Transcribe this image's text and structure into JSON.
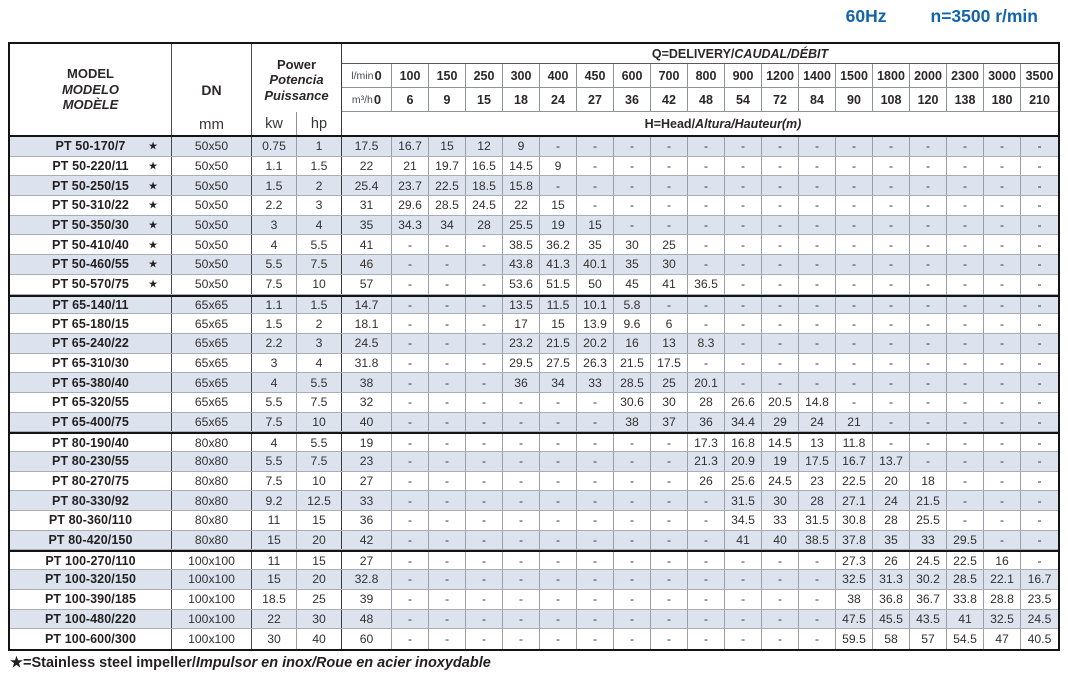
{
  "page": {
    "frequency": "60Hz",
    "speed": "n=3500 r/min",
    "accent_blue": "#1365ab",
    "row_shade": "#dce3ef"
  },
  "table": {
    "header": {
      "model_lines": [
        "MODEL",
        "MODELO",
        "MODÈLE"
      ],
      "dn_label": "DN",
      "dn_unit": "mm",
      "power_lines": [
        "Power",
        "Potencia",
        "Puissance"
      ],
      "kw_label": "kw",
      "hp_label": "hp",
      "delivery_bold": "Q=DELIVERY/",
      "delivery_italic": "CAUDAL/DÉBIT",
      "lmin_label": "l/min",
      "lmin_zero": "0",
      "m3h_label": "m³/h",
      "m3h_zero": "0",
      "lmin_values": [
        "100",
        "150",
        "250",
        "300",
        "400",
        "450",
        "600",
        "700",
        "800",
        "900",
        "1200",
        "1400",
        "1500",
        "1800",
        "2000",
        "2300",
        "3000",
        "3500"
      ],
      "m3h_values": [
        "6",
        "9",
        "15",
        "18",
        "24",
        "27",
        "36",
        "42",
        "48",
        "54",
        "72",
        "84",
        "90",
        "108",
        "120",
        "138",
        "180",
        "210"
      ],
      "head_bold": "H=Head/",
      "head_italic": "Altura/Hauteur(m)"
    },
    "rows": [
      {
        "model": "PT 50-170/7",
        "star": true,
        "dn": "50x50",
        "kw": "0.75",
        "hp": "1",
        "heads": [
          "17.5",
          "16.7",
          "15",
          "12",
          "9",
          "-",
          "-",
          "-",
          "-",
          "-",
          "-",
          "-",
          "-",
          "-",
          "-",
          "-",
          "-",
          "-",
          "-"
        ]
      },
      {
        "model": "PT 50-220/11",
        "star": true,
        "dn": "50x50",
        "kw": "1.1",
        "hp": "1.5",
        "heads": [
          "22",
          "21",
          "19.7",
          "16.5",
          "14.5",
          "9",
          "-",
          "-",
          "-",
          "-",
          "-",
          "-",
          "-",
          "-",
          "-",
          "-",
          "-",
          "-",
          "-"
        ]
      },
      {
        "model": "PT 50-250/15",
        "star": true,
        "dn": "50x50",
        "kw": "1.5",
        "hp": "2",
        "heads": [
          "25.4",
          "23.7",
          "22.5",
          "18.5",
          "15.8",
          "-",
          "-",
          "-",
          "-",
          "-",
          "-",
          "-",
          "-",
          "-",
          "-",
          "-",
          "-",
          "-",
          "-"
        ]
      },
      {
        "model": "PT 50-310/22",
        "star": true,
        "dn": "50x50",
        "kw": "2.2",
        "hp": "3",
        "heads": [
          "31",
          "29.6",
          "28.5",
          "24.5",
          "22",
          "15",
          "-",
          "-",
          "-",
          "-",
          "-",
          "-",
          "-",
          "-",
          "-",
          "-",
          "-",
          "-",
          "-"
        ]
      },
      {
        "model": "PT 50-350/30",
        "star": true,
        "dn": "50x50",
        "kw": "3",
        "hp": "4",
        "heads": [
          "35",
          "34.3",
          "34",
          "28",
          "25.5",
          "19",
          "15",
          "-",
          "-",
          "-",
          "-",
          "-",
          "-",
          "-",
          "-",
          "-",
          "-",
          "-",
          "-"
        ]
      },
      {
        "model": "PT 50-410/40",
        "star": true,
        "dn": "50x50",
        "kw": "4",
        "hp": "5.5",
        "heads": [
          "41",
          "-",
          "-",
          "-",
          "38.5",
          "36.2",
          "35",
          "30",
          "25",
          "-",
          "-",
          "-",
          "-",
          "-",
          "-",
          "-",
          "-",
          "-",
          "-"
        ]
      },
      {
        "model": "PT 50-460/55",
        "star": true,
        "dn": "50x50",
        "kw": "5.5",
        "hp": "7.5",
        "heads": [
          "46",
          "-",
          "-",
          "-",
          "43.8",
          "41.3",
          "40.1",
          "35",
          "30",
          "-",
          "-",
          "-",
          "-",
          "-",
          "-",
          "-",
          "-",
          "-",
          "-"
        ]
      },
      {
        "model": "PT 50-570/75",
        "star": true,
        "dn": "50x50",
        "kw": "7.5",
        "hp": "10",
        "heads": [
          "57",
          "-",
          "-",
          "-",
          "53.6",
          "51.5",
          "50",
          "45",
          "41",
          "36.5",
          "-",
          "-",
          "-",
          "-",
          "-",
          "-",
          "-",
          "-",
          "-"
        ]
      },
      {
        "model": "PT 65-140/11",
        "star": false,
        "dn": "65x65",
        "kw": "1.1",
        "hp": "1.5",
        "heads": [
          "14.7",
          "-",
          "-",
          "-",
          "13.5",
          "11.5",
          "10.1",
          "5.8",
          "-",
          "-",
          "-",
          "-",
          "-",
          "-",
          "-",
          "-",
          "-",
          "-",
          "-"
        ]
      },
      {
        "model": "PT 65-180/15",
        "star": false,
        "dn": "65x65",
        "kw": "1.5",
        "hp": "2",
        "heads": [
          "18.1",
          "-",
          "-",
          "-",
          "17",
          "15",
          "13.9",
          "9.6",
          "6",
          "-",
          "-",
          "-",
          "-",
          "-",
          "-",
          "-",
          "-",
          "-",
          "-"
        ]
      },
      {
        "model": "PT 65-240/22",
        "star": false,
        "dn": "65x65",
        "kw": "2.2",
        "hp": "3",
        "heads": [
          "24.5",
          "-",
          "-",
          "-",
          "23.2",
          "21.5",
          "20.2",
          "16",
          "13",
          "8.3",
          "-",
          "-",
          "-",
          "-",
          "-",
          "-",
          "-",
          "-",
          "-"
        ]
      },
      {
        "model": "PT 65-310/30",
        "star": false,
        "dn": "65x65",
        "kw": "3",
        "hp": "4",
        "heads": [
          "31.8",
          "-",
          "-",
          "-",
          "29.5",
          "27.5",
          "26.3",
          "21.5",
          "17.5",
          "-",
          "-",
          "-",
          "-",
          "-",
          "-",
          "-",
          "-",
          "-",
          "-"
        ]
      },
      {
        "model": "PT 65-380/40",
        "star": false,
        "dn": "65x65",
        "kw": "4",
        "hp": "5.5",
        "heads": [
          "38",
          "-",
          "-",
          "-",
          "36",
          "34",
          "33",
          "28.5",
          "25",
          "20.1",
          "-",
          "-",
          "-",
          "-",
          "-",
          "-",
          "-",
          "-",
          "-"
        ]
      },
      {
        "model": "PT 65-320/55",
        "star": false,
        "dn": "65x65",
        "kw": "5.5",
        "hp": "7.5",
        "heads": [
          "32",
          "-",
          "-",
          "-",
          "-",
          "-",
          "-",
          "30.6",
          "30",
          "28",
          "26.6",
          "20.5",
          "14.8",
          "-",
          "-",
          "-",
          "-",
          "-",
          "-"
        ]
      },
      {
        "model": "PT 65-400/75",
        "star": false,
        "dn": "65x65",
        "kw": "7.5",
        "hp": "10",
        "heads": [
          "40",
          "-",
          "-",
          "-",
          "-",
          "-",
          "-",
          "38",
          "37",
          "36",
          "34.4",
          "29",
          "24",
          "21",
          "-",
          "-",
          "-",
          "-",
          "-"
        ]
      },
      {
        "model": "PT 80-190/40",
        "star": false,
        "dn": "80x80",
        "kw": "4",
        "hp": "5.5",
        "heads": [
          "19",
          "-",
          "-",
          "-",
          "-",
          "-",
          "-",
          "-",
          "-",
          "17.3",
          "16.8",
          "14.5",
          "13",
          "11.8",
          "-",
          "-",
          "-",
          "-",
          "-"
        ]
      },
      {
        "model": "PT 80-230/55",
        "star": false,
        "dn": "80x80",
        "kw": "5.5",
        "hp": "7.5",
        "heads": [
          "23",
          "-",
          "-",
          "-",
          "-",
          "-",
          "-",
          "-",
          "-",
          "21.3",
          "20.9",
          "19",
          "17.5",
          "16.7",
          "13.7",
          "-",
          "-",
          "-",
          "-"
        ]
      },
      {
        "model": "PT 80-270/75",
        "star": false,
        "dn": "80x80",
        "kw": "7.5",
        "hp": "10",
        "heads": [
          "27",
          "-",
          "-",
          "-",
          "-",
          "-",
          "-",
          "-",
          "-",
          "26",
          "25.6",
          "24.5",
          "23",
          "22.5",
          "20",
          "18",
          "-",
          "-",
          "-"
        ]
      },
      {
        "model": "PT 80-330/92",
        "star": false,
        "dn": "80x80",
        "kw": "9.2",
        "hp": "12.5",
        "heads": [
          "33",
          "-",
          "-",
          "-",
          "-",
          "-",
          "-",
          "-",
          "-",
          "-",
          "31.5",
          "30",
          "28",
          "27.1",
          "24",
          "21.5",
          "-",
          "-",
          "-"
        ]
      },
      {
        "model": "PT 80-360/110",
        "star": false,
        "dn": "80x80",
        "kw": "11",
        "hp": "15",
        "heads": [
          "36",
          "-",
          "-",
          "-",
          "-",
          "-",
          "-",
          "-",
          "-",
          "-",
          "34.5",
          "33",
          "31.5",
          "30.8",
          "28",
          "25.5",
          "-",
          "-",
          "-"
        ]
      },
      {
        "model": "PT 80-420/150",
        "star": false,
        "dn": "80x80",
        "kw": "15",
        "hp": "20",
        "heads": [
          "42",
          "-",
          "-",
          "-",
          "-",
          "-",
          "-",
          "-",
          "-",
          "-",
          "41",
          "40",
          "38.5",
          "37.8",
          "35",
          "33",
          "29.5",
          "-",
          "-"
        ]
      },
      {
        "model": "PT 100-270/110",
        "star": false,
        "dn": "100x100",
        "kw": "11",
        "hp": "15",
        "heads": [
          "27",
          "-",
          "-",
          "-",
          "-",
          "-",
          "-",
          "-",
          "-",
          "-",
          "-",
          "-",
          "-",
          "27.3",
          "26",
          "24.5",
          "22.5",
          "16",
          "-"
        ]
      },
      {
        "model": "PT 100-320/150",
        "star": false,
        "dn": "100x100",
        "kw": "15",
        "hp": "20",
        "heads": [
          "32.8",
          "-",
          "-",
          "-",
          "-",
          "-",
          "-",
          "-",
          "-",
          "-",
          "-",
          "-",
          "-",
          "32.5",
          "31.3",
          "30.2",
          "28.5",
          "22.1",
          "16.7"
        ]
      },
      {
        "model": "PT 100-390/185",
        "star": false,
        "dn": "100x100",
        "kw": "18.5",
        "hp": "25",
        "heads": [
          "39",
          "-",
          "-",
          "-",
          "-",
          "-",
          "-",
          "-",
          "-",
          "-",
          "-",
          "-",
          "-",
          "38",
          "36.8",
          "36.7",
          "33.8",
          "28.8",
          "23.5"
        ]
      },
      {
        "model": "PT 100-480/220",
        "star": false,
        "dn": "100x100",
        "kw": "22",
        "hp": "30",
        "heads": [
          "48",
          "-",
          "-",
          "-",
          "-",
          "-",
          "-",
          "-",
          "-",
          "-",
          "-",
          "-",
          "-",
          "47.5",
          "45.5",
          "43.5",
          "41",
          "32.5",
          "24.5"
        ]
      },
      {
        "model": "PT 100-600/300",
        "star": false,
        "dn": "100x100",
        "kw": "30",
        "hp": "40",
        "heads": [
          "60",
          "-",
          "-",
          "-",
          "-",
          "-",
          "-",
          "-",
          "-",
          "-",
          "-",
          "-",
          "-",
          "59.5",
          "58",
          "57",
          "54.5",
          "47",
          "40.5"
        ]
      }
    ]
  },
  "footnote": {
    "bold": "★=Stainless steel impeller/",
    "italic": "Impulsor en inox/Roue en acier inoxydable"
  }
}
